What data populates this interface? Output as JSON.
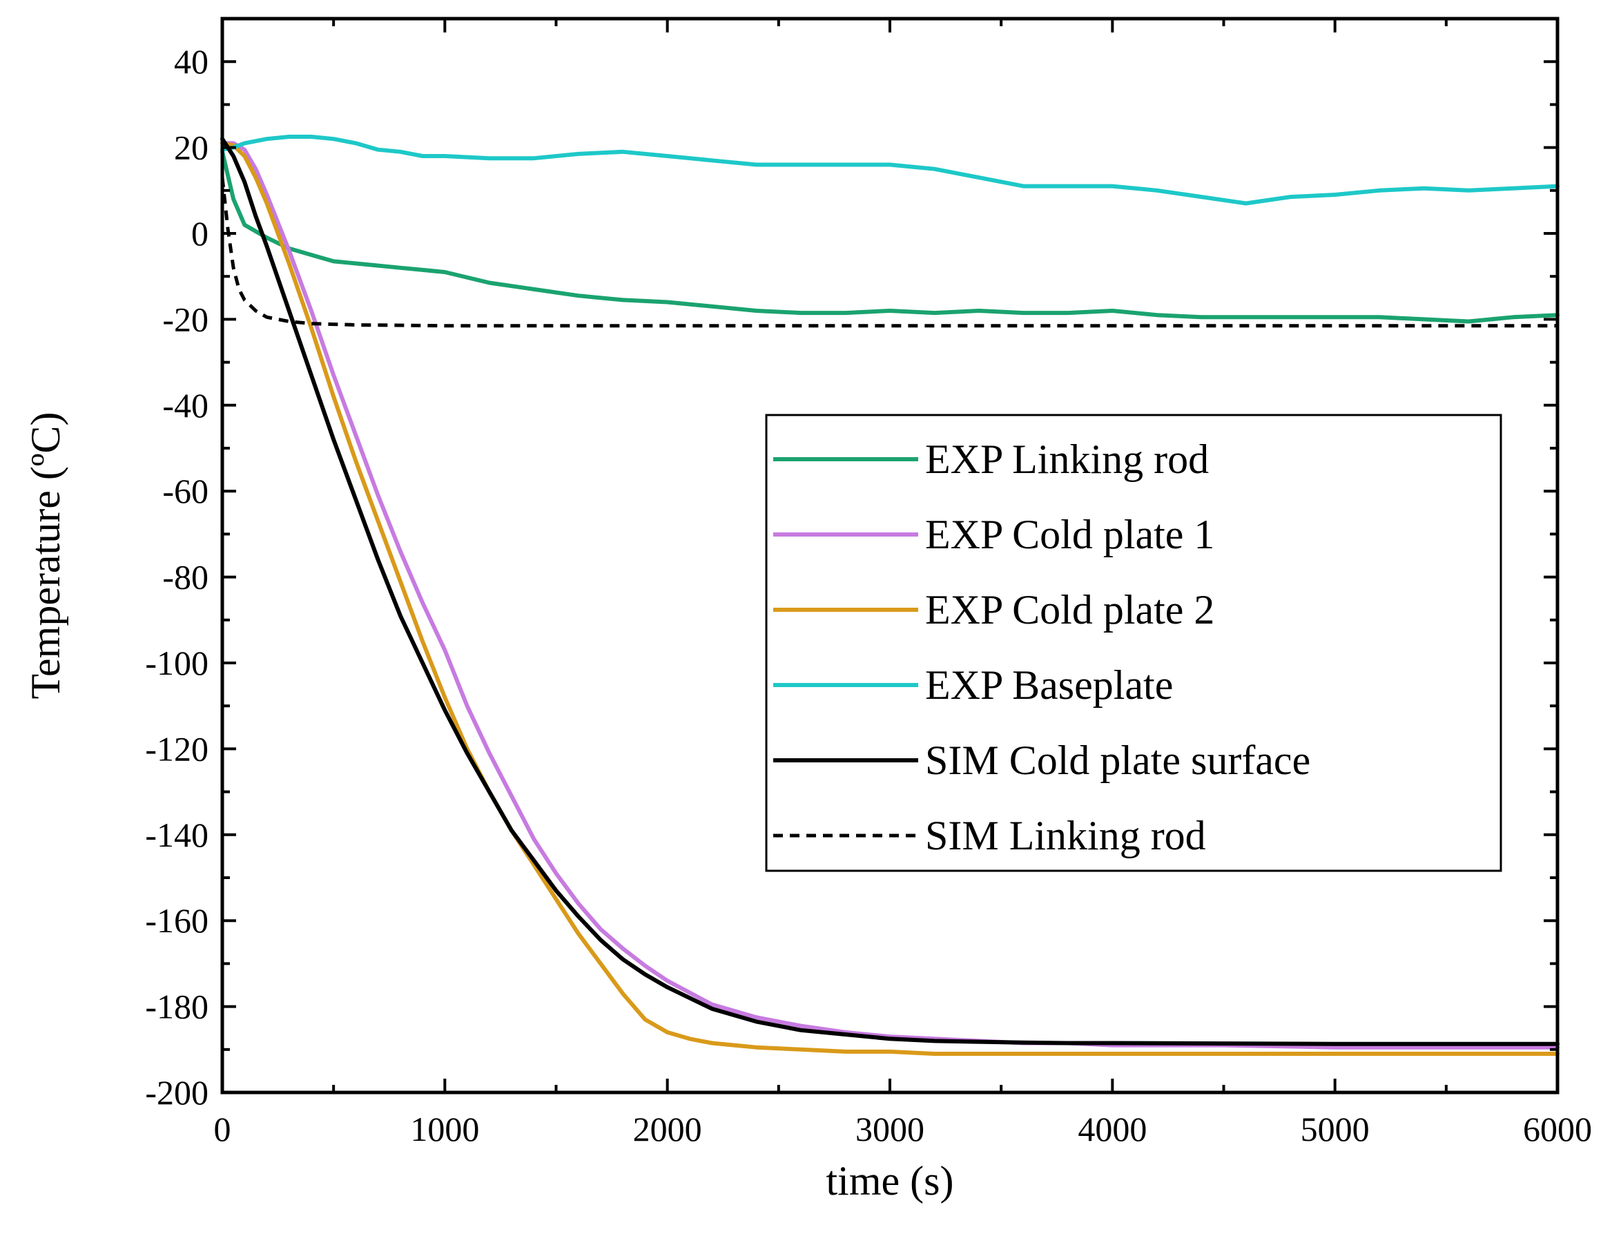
{
  "chart_data": {
    "type": "line",
    "title": "",
    "xlabel": "time (s)",
    "ylabel": "Temperature (ºC)",
    "xlim": [
      0,
      6000
    ],
    "ylim": [
      -200,
      50
    ],
    "x_ticks": [
      0,
      1000,
      2000,
      3000,
      4000,
      5000,
      6000
    ],
    "x_tick_labels": [
      "0",
      "1000",
      "2000",
      "3000",
      "4000",
      "5000",
      "6000"
    ],
    "y_ticks": [
      40,
      20,
      0,
      -20,
      -40,
      -60,
      -80,
      -100,
      -120,
      -140,
      -160,
      -180,
      -200
    ],
    "y_tick_labels": [
      "40",
      "20",
      "0",
      "-20",
      "-40",
      "-60",
      "-80",
      "-100",
      "-120",
      "-140",
      "-160",
      "-180",
      "-200"
    ],
    "grid": false,
    "legend_position": "center-right",
    "series": [
      {
        "name": "EXP Linking rod",
        "color": "#1aa36f",
        "dash": "solid",
        "x": [
          0,
          50,
          100,
          200,
          300,
          400,
          500,
          600,
          700,
          800,
          900,
          1000,
          1200,
          1400,
          1600,
          1800,
          2000,
          2200,
          2400,
          2600,
          2800,
          3000,
          3200,
          3400,
          3600,
          3800,
          4000,
          4200,
          4400,
          4600,
          4800,
          5000,
          5200,
          5400,
          5600,
          5800,
          6000
        ],
        "y": [
          19,
          8,
          2,
          -1,
          -3.5,
          -5,
          -6.5,
          -7,
          -7.5,
          -8,
          -8.5,
          -9,
          -11.5,
          -13,
          -14.5,
          -15.5,
          -16,
          -17,
          -18,
          -18.5,
          -18.5,
          -18,
          -18.5,
          -18,
          -18.5,
          -18.5,
          -18,
          -19,
          -19.5,
          -19.5,
          -19.5,
          -19.5,
          -19.5,
          -20,
          -20.5,
          -19.5,
          -19
        ]
      },
      {
        "name": "EXP Cold plate 1",
        "color": "#c77be0",
        "dash": "solid",
        "x": [
          0,
          50,
          100,
          150,
          200,
          300,
          400,
          500,
          600,
          700,
          800,
          900,
          1000,
          1100,
          1200,
          1300,
          1400,
          1500,
          1600,
          1700,
          1800,
          1900,
          2000,
          2200,
          2400,
          2600,
          2800,
          3000,
          3200,
          3400,
          3600,
          3800,
          4000,
          4500,
          5000,
          5500,
          6000
        ],
        "y": [
          21,
          21,
          19.5,
          15,
          9,
          -4,
          -18,
          -33,
          -47,
          -61,
          -74,
          -86,
          -97,
          -110,
          -121,
          -131,
          -141,
          -149,
          -156,
          -162,
          -166.5,
          -170.5,
          -174,
          -179.5,
          -182.5,
          -184.5,
          -186,
          -187,
          -187.5,
          -188,
          -188.5,
          -188.5,
          -189,
          -189,
          -189.5,
          -189.5,
          -189.5
        ]
      },
      {
        "name": "EXP Cold plate 2",
        "color": "#d99a1a",
        "dash": "solid",
        "x": [
          0,
          50,
          100,
          150,
          200,
          300,
          400,
          500,
          600,
          700,
          800,
          900,
          1000,
          1100,
          1200,
          1300,
          1400,
          1500,
          1600,
          1700,
          1800,
          1900,
          2000,
          2100,
          2200,
          2300,
          2400,
          2600,
          2800,
          3000,
          3200,
          3400,
          3600,
          4000,
          4500,
          5000,
          6000
        ],
        "y": [
          21,
          20.5,
          18,
          13,
          7,
          -7,
          -22,
          -38,
          -53,
          -67,
          -81,
          -95,
          -108,
          -120,
          -130,
          -139,
          -147,
          -155,
          -163,
          -170,
          -177,
          -183,
          -186,
          -187.5,
          -188.5,
          -189,
          -189.5,
          -190,
          -190.5,
          -190.5,
          -191,
          -191,
          -191,
          -191,
          -191,
          -191,
          -191
        ]
      },
      {
        "name": "EXP Baseplate",
        "color": "#1ec8c8",
        "dash": "solid",
        "x": [
          0,
          50,
          100,
          200,
          300,
          400,
          500,
          600,
          700,
          800,
          900,
          1000,
          1200,
          1400,
          1600,
          1800,
          2000,
          2200,
          2400,
          2600,
          2800,
          3000,
          3200,
          3400,
          3600,
          3800,
          4000,
          4200,
          4400,
          4600,
          4800,
          5000,
          5200,
          5400,
          5600,
          5800,
          6000
        ],
        "y": [
          19.5,
          20,
          21,
          22,
          22.5,
          22.5,
          22,
          21,
          19.5,
          19,
          18,
          18,
          17.5,
          17.5,
          18.5,
          19,
          18,
          17,
          16,
          16,
          16,
          16,
          15,
          13,
          11,
          11,
          11,
          10,
          8.5,
          7,
          8.5,
          9,
          10,
          10.5,
          10,
          10.5,
          11
        ]
      },
      {
        "name": "SIM Cold plate surface",
        "color": "#000000",
        "dash": "solid",
        "x": [
          0,
          50,
          100,
          150,
          200,
          300,
          400,
          500,
          600,
          700,
          800,
          900,
          1000,
          1100,
          1200,
          1300,
          1400,
          1500,
          1600,
          1700,
          1800,
          1900,
          2000,
          2200,
          2400,
          2600,
          2800,
          3000,
          3200,
          3400,
          3600,
          3800,
          4000,
          4500,
          5000,
          5500,
          6000
        ],
        "y": [
          22,
          18,
          12,
          4,
          -3,
          -18,
          -33,
          -48,
          -62,
          -76,
          -89,
          -100,
          -111,
          -121,
          -130,
          -139,
          -146,
          -153,
          -159,
          -164.5,
          -169,
          -172.5,
          -175.5,
          -180.5,
          -183.5,
          -185.5,
          -186.5,
          -187.5,
          -188,
          -188.2,
          -188.4,
          -188.5,
          -188.5,
          -188.6,
          -188.7,
          -188.7,
          -188.7
        ]
      },
      {
        "name": "SIM Linking rod",
        "color": "#000000",
        "dash": "dashed",
        "x": [
          0,
          25,
          50,
          75,
          100,
          150,
          200,
          300,
          400,
          600,
          1000,
          2000,
          3000,
          4000,
          5000,
          6000
        ],
        "y": [
          13,
          1,
          -8,
          -13,
          -15.5,
          -18,
          -19.5,
          -20.5,
          -21,
          -21.3,
          -21.5,
          -21.5,
          -21.5,
          -21.5,
          -21.5,
          -21.5
        ]
      }
    ]
  }
}
